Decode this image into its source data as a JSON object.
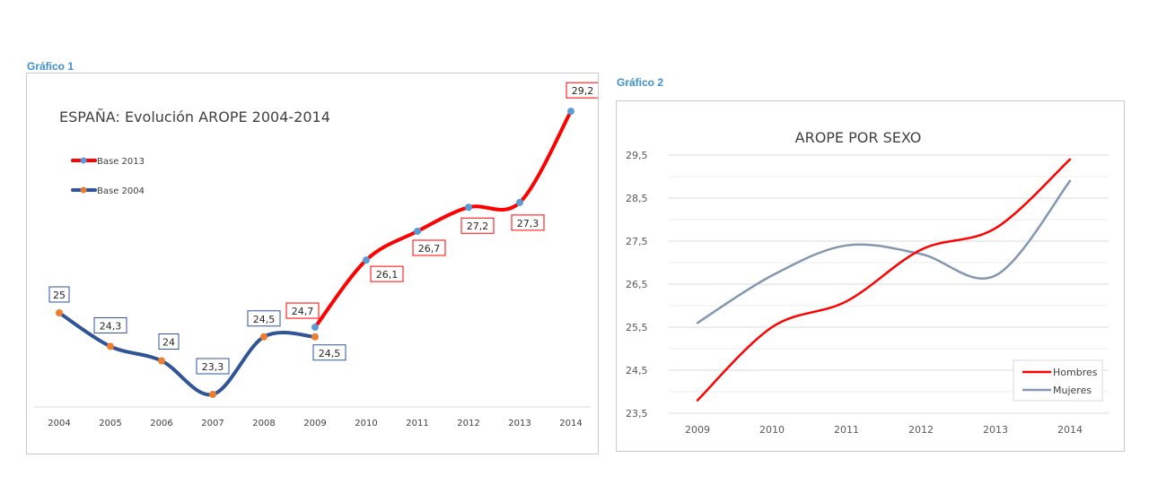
{
  "captions": {
    "chart1": "Gráfico 1",
    "chart2": "Gráfico 2"
  },
  "colors": {
    "red": "#ff0000",
    "blue": "#2f5597",
    "orange": "#ed7d31",
    "lightblue": "#5b9bd5",
    "grey": "#8497b0",
    "caption": "#3e8fd0"
  },
  "chart_data": [
    {
      "type": "line",
      "title": "ESPAÑA: Evolución AROPE 2004-2014",
      "categories": [
        "2004",
        "2005",
        "2006",
        "2007",
        "2008",
        "2009",
        "2010",
        "2011",
        "2012",
        "2013",
        "2014"
      ],
      "series": [
        {
          "name": "Base 2013",
          "x": [
            "2009",
            "2010",
            "2011",
            "2012",
            "2013",
            "2014"
          ],
          "values": [
            24.7,
            26.1,
            26.7,
            27.2,
            27.3,
            29.2
          ],
          "labels": [
            "24,7",
            "26,1",
            "26,7",
            "27,2",
            "27,3",
            "29,2"
          ],
          "line_color": "#ff0000",
          "marker_color": "#5b9bd5"
        },
        {
          "name": "Base 2004",
          "x": [
            "2004",
            "2005",
            "2006",
            "2007",
            "2008",
            "2009"
          ],
          "values": [
            25,
            24.3,
            24,
            23.3,
            24.5,
            24.5
          ],
          "labels": [
            "25",
            "24,3",
            "24",
            "23,3",
            "24,5",
            "24,5"
          ],
          "line_color": "#2f5597",
          "marker_color": "#ed7d31"
        }
      ],
      "legend_position": "top-left",
      "grid": false
    },
    {
      "type": "line",
      "title": "AROPE POR SEXO",
      "categories": [
        "2009",
        "2010",
        "2011",
        "2012",
        "2013",
        "2014"
      ],
      "y_ticks": [
        "23,5",
        "24,5",
        "25,5",
        "26,5",
        "27,5",
        "28,5",
        "29,5"
      ],
      "ylim": [
        23.5,
        29.5
      ],
      "series": [
        {
          "name": "Hombres",
          "values": [
            23.8,
            25.5,
            26.1,
            27.3,
            27.8,
            29.4
          ],
          "color": "#ff0000"
        },
        {
          "name": "Mujeres",
          "values": [
            25.6,
            26.7,
            27.4,
            27.2,
            26.7,
            28.9
          ],
          "color": "#8497b0"
        }
      ],
      "legend_position": "bottom-right",
      "grid": true
    }
  ]
}
